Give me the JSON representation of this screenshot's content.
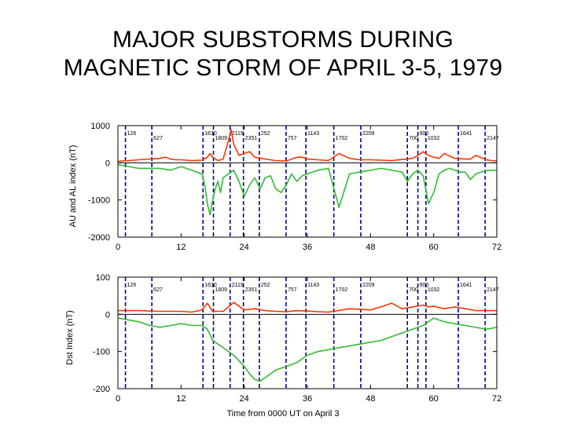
{
  "title_lines": [
    "MAJOR SUBSTORMS DURING",
    "MAGNETIC STORM OF APRIL 3-5, 1979"
  ],
  "colors": {
    "upper_trace": "#ff3300",
    "lower_trace": "#33bb33",
    "substorm_marker": "#000099",
    "frame": "#000000"
  },
  "chart_data": [
    {
      "type": "line",
      "ylabel": "AU and AL index (nT)",
      "xlabel": "",
      "xlim": [
        0,
        72
      ],
      "ylim": [
        -2000,
        1000
      ],
      "x_ticks": [
        0,
        12,
        24,
        36,
        48,
        60,
        72
      ],
      "y_ticks": [
        1000,
        0,
        -1000,
        -2000
      ],
      "substorm_marker_times_ut": [
        "126",
        "627",
        "1610",
        "1809",
        "2119",
        "2351",
        "252",
        "757",
        "1143",
        "1702",
        "2209",
        "700",
        "900",
        "1032",
        "1641",
        "2147"
      ],
      "series": [
        {
          "color": "#ff3300",
          "x": [
            0,
            2,
            4,
            6,
            8,
            9,
            10,
            11,
            12,
            14,
            16,
            17,
            17.5,
            18,
            19,
            20,
            21,
            21.5,
            22,
            23,
            24,
            25,
            26,
            27,
            28,
            30,
            32,
            33,
            34,
            35,
            36,
            38,
            40,
            42,
            44,
            46,
            48,
            50,
            52,
            54,
            55,
            56,
            57,
            58,
            59,
            60,
            61,
            62,
            64,
            66,
            67,
            68,
            70,
            71,
            72
          ],
          "y": [
            40,
            60,
            80,
            100,
            120,
            150,
            100,
            80,
            80,
            60,
            70,
            150,
            250,
            150,
            60,
            100,
            600,
            900,
            500,
            200,
            250,
            300,
            150,
            120,
            100,
            60,
            50,
            100,
            150,
            150,
            100,
            80,
            60,
            250,
            120,
            80,
            80,
            70,
            60,
            90,
            100,
            120,
            200,
            300,
            200,
            150,
            120,
            250,
            120,
            100,
            100,
            200,
            80,
            60,
            50
          ]
        },
        {
          "color": "#33bb33",
          "x": [
            0,
            2,
            4,
            6,
            8,
            10,
            12,
            14,
            16,
            16.5,
            17,
            17.5,
            18,
            18.5,
            19,
            19.5,
            20,
            21,
            22,
            23,
            24,
            25,
            26,
            27,
            28,
            29,
            30,
            31,
            32,
            33,
            34,
            35,
            36,
            38,
            40,
            42,
            44,
            46,
            48,
            50,
            52,
            54,
            55,
            56,
            57,
            58,
            59,
            60,
            61,
            62,
            63,
            64,
            65,
            66,
            67,
            68,
            69,
            70,
            72
          ],
          "y": [
            -50,
            -100,
            -150,
            -150,
            -150,
            -200,
            -100,
            -200,
            -300,
            -600,
            -1100,
            -1400,
            -1000,
            -700,
            -500,
            -800,
            -400,
            -300,
            -200,
            -500,
            -900,
            -600,
            -400,
            -700,
            -400,
            -350,
            -700,
            -800,
            -600,
            -300,
            -500,
            -350,
            -300,
            -200,
            -150,
            -1200,
            -300,
            -250,
            -200,
            -150,
            -200,
            -250,
            -500,
            -300,
            -200,
            -350,
            -1100,
            -800,
            -300,
            -200,
            -150,
            -200,
            -250,
            -250,
            -450,
            -300,
            -250,
            -200,
            -200
          ]
        }
      ]
    },
    {
      "type": "line",
      "ylabel": "Dst Index (nT)",
      "xlabel": "Time from 0000 UT on April 3",
      "xlim": [
        0,
        72
      ],
      "ylim": [
        -200,
        100
      ],
      "x_ticks": [
        0,
        12,
        24,
        36,
        48,
        60,
        72
      ],
      "y_ticks": [
        100,
        0,
        -100,
        -200
      ],
      "substorm_marker_times_ut": [
        "126",
        "627",
        "1610",
        "1809",
        "2119",
        "2351",
        "252",
        "757",
        "1143",
        "1702",
        "2209",
        "700",
        "900",
        "1032",
        "1641",
        "2147"
      ],
      "series": [
        {
          "color": "#ff3300",
          "x": [
            0,
            4,
            8,
            12,
            14,
            16,
            17,
            18,
            20,
            21,
            22,
            24,
            26,
            28,
            30,
            32,
            34,
            36,
            38,
            40,
            44,
            48,
            50,
            52,
            54,
            56,
            58,
            59,
            60,
            61,
            62,
            64,
            66,
            68,
            70,
            72
          ],
          "y": [
            10,
            10,
            8,
            8,
            6,
            12,
            30,
            8,
            8,
            20,
            32,
            12,
            15,
            10,
            8,
            7,
            10,
            9,
            7,
            6,
            15,
            12,
            20,
            30,
            15,
            20,
            25,
            20,
            22,
            18,
            15,
            20,
            15,
            10,
            10,
            10
          ]
        },
        {
          "color": "#33bb33",
          "x": [
            0,
            2,
            4,
            6,
            8,
            10,
            12,
            14,
            16,
            17,
            18,
            19,
            20,
            22,
            24,
            25,
            26,
            27,
            28,
            29,
            30,
            32,
            34,
            36,
            38,
            40,
            42,
            44,
            46,
            48,
            50,
            52,
            54,
            56,
            58,
            60,
            62,
            64,
            66,
            68,
            70,
            72
          ],
          "y": [
            -10,
            -15,
            -20,
            -30,
            -35,
            -30,
            -25,
            -30,
            -30,
            -40,
            -70,
            -80,
            -90,
            -110,
            -140,
            -160,
            -175,
            -180,
            -170,
            -160,
            -150,
            -140,
            -130,
            -110,
            -100,
            -95,
            -90,
            -85,
            -80,
            -75,
            -70,
            -60,
            -50,
            -40,
            -30,
            -10,
            -20,
            -25,
            -30,
            -35,
            -40,
            -35
          ]
        }
      ]
    }
  ]
}
